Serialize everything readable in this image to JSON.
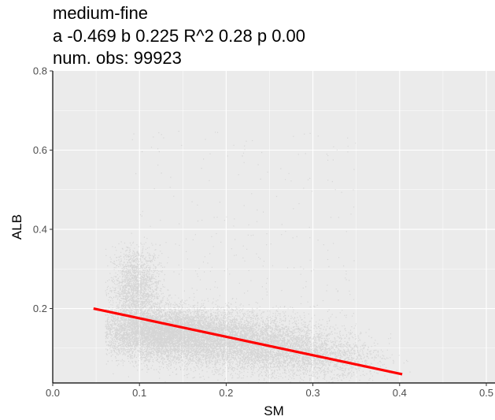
{
  "chart_data": {
    "type": "scatter",
    "title": "medium-fine",
    "subtitle": "a -0.469 b 0.225 R^2 0.28 p 0.00",
    "caption_obs": "num. obs: 99923",
    "xlabel": "SM",
    "ylabel": "ALB",
    "xlim": [
      0.0,
      0.51
    ],
    "ylim": [
      0.012,
      0.8
    ],
    "x_ticks": [
      "0.0",
      "0.1",
      "0.2",
      "0.3",
      "0.4",
      "0.5"
    ],
    "x_tick_values": [
      0.0,
      0.1,
      0.2,
      0.3,
      0.4,
      0.5
    ],
    "y_ticks": [
      "0.2",
      "0.4",
      "0.6",
      "0.8"
    ],
    "y_tick_values": [
      0.2,
      0.4,
      0.6,
      0.8
    ],
    "grid": true,
    "fit_line": {
      "x": [
        0.047,
        0.403
      ],
      "y": [
        0.2,
        0.034
      ],
      "color": "#ff0000"
    },
    "point_color": "#000000",
    "panel_color": "#ebebeb",
    "grid_color": "#ffffff",
    "density_clusters": [
      {
        "cx": 0.095,
        "cy": 0.25,
        "sx": 0.014,
        "sy": 0.055,
        "weight": 0.13
      },
      {
        "cx": 0.12,
        "cy": 0.14,
        "sx": 0.035,
        "sy": 0.03,
        "weight": 0.3
      },
      {
        "cx": 0.17,
        "cy": 0.13,
        "sx": 0.045,
        "sy": 0.035,
        "weight": 0.25
      },
      {
        "cx": 0.23,
        "cy": 0.11,
        "sx": 0.045,
        "sy": 0.035,
        "weight": 0.2
      },
      {
        "cx": 0.29,
        "cy": 0.085,
        "sx": 0.04,
        "sy": 0.03,
        "weight": 0.1
      },
      {
        "cx": 0.33,
        "cy": 0.07,
        "sx": 0.03,
        "sy": 0.025,
        "weight": 0.02
      }
    ]
  }
}
